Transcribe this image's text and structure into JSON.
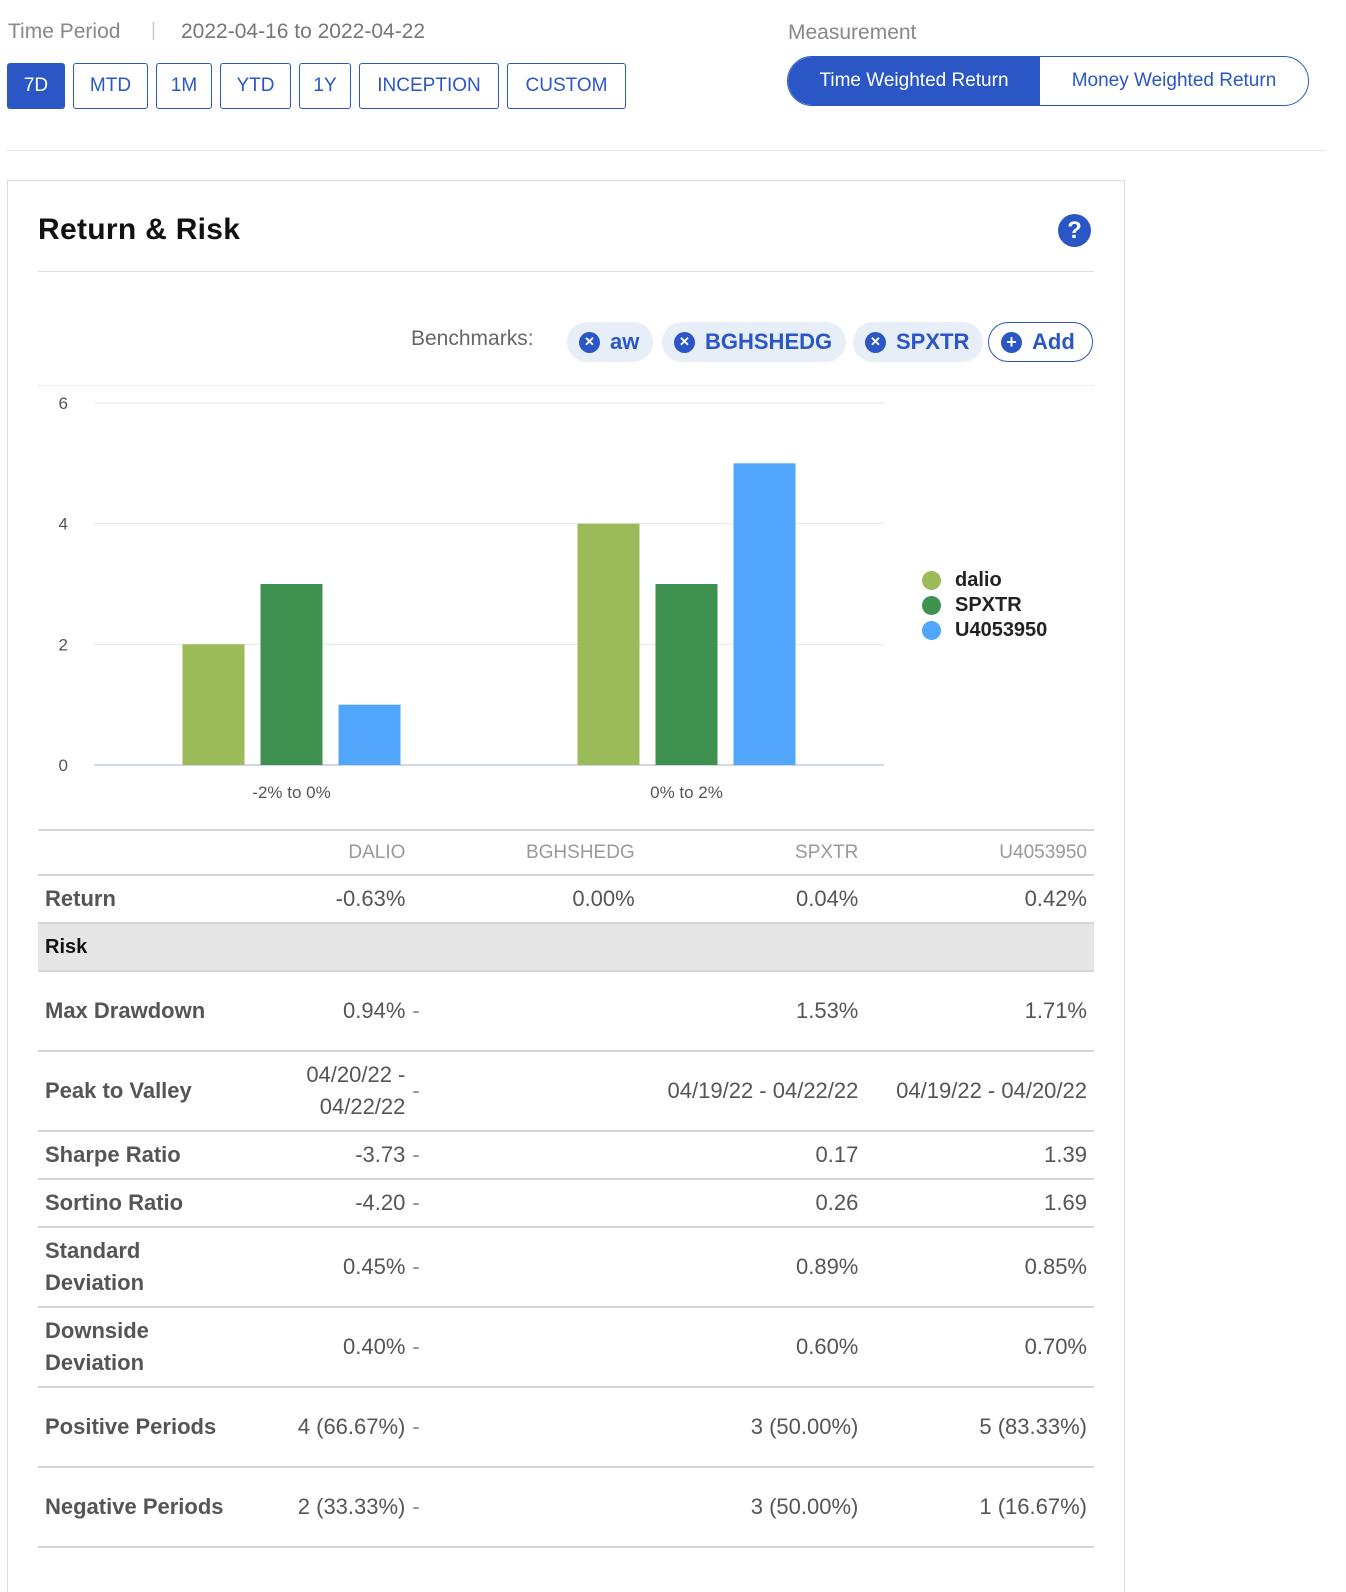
{
  "time_period": {
    "label": "Time Period",
    "separator": "|",
    "start": "2022-04-16",
    "to": "to",
    "end": "2022-04-22",
    "buttons": [
      "7D",
      "MTD",
      "1M",
      "YTD",
      "1Y",
      "INCEPTION",
      "CUSTOM"
    ],
    "active": "7D"
  },
  "measurement": {
    "label": "Measurement",
    "options": [
      "Time Weighted Return",
      "Money Weighted Return"
    ],
    "active": "Time Weighted Return"
  },
  "card": {
    "title": "Return & Risk",
    "help_icon": "question-circle-icon",
    "help_glyph": "?"
  },
  "benchmarks": {
    "label": "Benchmarks:",
    "chips": [
      "aw",
      "BGHSHEDG",
      "SPXTR"
    ],
    "remove_glyph": "✕",
    "add_label": "Add",
    "add_glyph": "+"
  },
  "colors": {
    "accent": "#2a56c6",
    "dalio": "#9bbb59",
    "SPXTR": "#3f914f",
    "U4053950": "#50a6fa"
  },
  "chart_data": {
    "type": "bar",
    "categories": [
      "-2% to 0%",
      "0% to 2%"
    ],
    "series": [
      {
        "name": "dalio",
        "values": [
          2,
          4
        ],
        "color": "#9bbb59"
      },
      {
        "name": "SPXTR",
        "values": [
          3,
          3
        ],
        "color": "#3f914f"
      },
      {
        "name": "U4053950",
        "values": [
          1,
          5
        ],
        "color": "#50a6fa"
      }
    ],
    "ylim": [
      0,
      6
    ],
    "yticks": [
      0,
      2,
      4,
      6
    ],
    "grid": true,
    "legend": "right"
  },
  "table": {
    "columns": [
      "",
      "DALIO",
      "BGHSHEDG",
      "SPXTR",
      "U4053950"
    ],
    "return_row": {
      "label": "Return",
      "values": [
        "-0.63%",
        "0.00%",
        "0.04%",
        "0.42%"
      ]
    },
    "risk_section": "Risk",
    "risk_rows": [
      {
        "label": "Max Drawdown",
        "values": [
          "0.94%",
          "-",
          "1.53%",
          "1.71%"
        ]
      },
      {
        "label": "Peak to Valley",
        "values": [
          "04/20/22 - 04/22/22",
          "-",
          "04/19/22 - 04/22/22",
          "04/19/22 - 04/20/22"
        ]
      },
      {
        "label": "Sharpe Ratio",
        "values": [
          "-3.73",
          "-",
          "0.17",
          "1.39"
        ]
      },
      {
        "label": "Sortino Ratio",
        "values": [
          "-4.20",
          "-",
          "0.26",
          "1.69"
        ]
      },
      {
        "label": "Standard Deviation",
        "values": [
          "0.45%",
          "-",
          "0.89%",
          "0.85%"
        ]
      },
      {
        "label": "Downside Deviation",
        "values": [
          "0.40%",
          "-",
          "0.60%",
          "0.70%"
        ]
      },
      {
        "label": "Positive Periods",
        "values": [
          "4 (66.67%)",
          "-",
          "3 (50.00%)",
          "5 (83.33%)"
        ]
      },
      {
        "label": "Negative Periods",
        "values": [
          "2 (33.33%)",
          "-",
          "3 (50.00%)",
          "1 (16.67%)"
        ]
      }
    ]
  }
}
